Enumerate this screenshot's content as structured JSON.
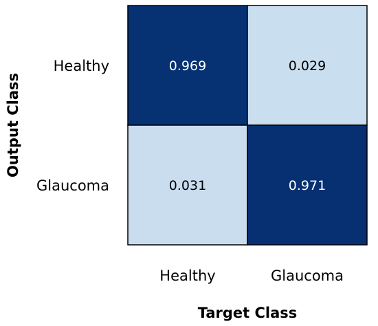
{
  "chart_data": {
    "type": "heatmap",
    "title": "",
    "xlabel": "Target Class",
    "ylabel": "Output Class",
    "x_categories": [
      "Healthy",
      "Glaucoma"
    ],
    "y_categories": [
      "Healthy",
      "Glaucoma"
    ],
    "values": [
      [
        0.969,
        0.029
      ],
      [
        0.031,
        0.971
      ]
    ],
    "value_labels": [
      [
        "0.969",
        "0.029"
      ],
      [
        "0.031",
        "0.971"
      ]
    ],
    "color_high": "#002b6e",
    "color_low": "#cfe3f3",
    "text_on_high": "#ffffff",
    "text_on_low": "#000000",
    "border_color": "#000000",
    "grid": false,
    "legend": "none"
  }
}
